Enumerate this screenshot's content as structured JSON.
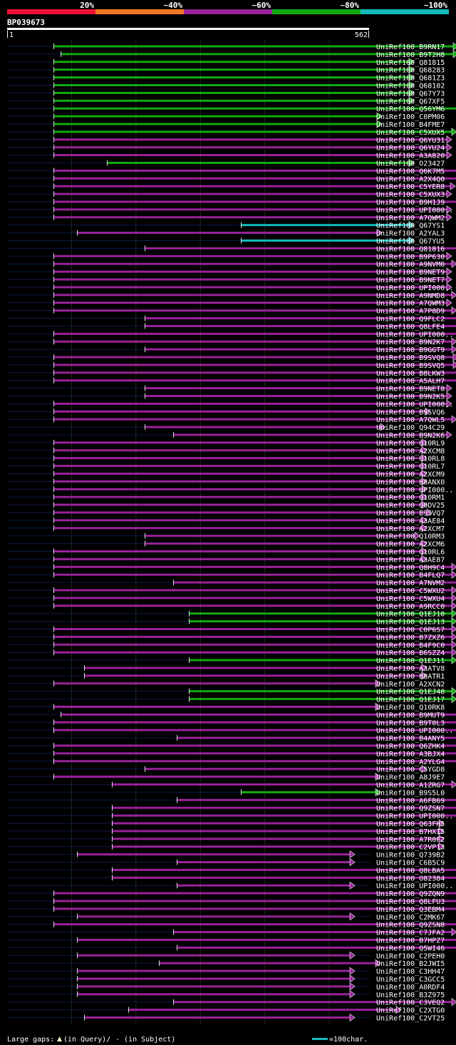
{
  "chart_data": {
    "type": "alignment-overview",
    "title": "BP039673",
    "query_length_start_label": "1",
    "query_length_end_label": "562",
    "query_length": 562,
    "identity_scale": [
      {
        "label": "20%",
        "color": "#ee1133"
      },
      {
        "label": "~40%",
        "color": "#ee7722"
      },
      {
        "label": "~60%",
        "color": "#992299"
      },
      {
        "label": "~80%",
        "color": "#11aa11"
      },
      {
        "label": "~100%",
        "color": "#11bbbb"
      }
    ],
    "legend": {
      "large_gaps_label": "Large gaps:",
      "in_query_label": "(in Query)/",
      "in_subject_label": "- (in Subject)",
      "scale_label": "=100char.",
      "scale_chars": 100
    },
    "hits": [
      {
        "label": "UniRef100_B9RN17",
        "start": 75,
        "end": 642,
        "identity": "~80%"
      },
      {
        "label": "UniRef100_B9T2H8",
        "start": 85,
        "end": 642,
        "identity": "~80%"
      },
      {
        "label": "UniRef100_Q81815",
        "start": 75,
        "end": 580,
        "identity": "~80%"
      },
      {
        "label": "UniRef100_Q68283",
        "start": 75,
        "end": 580,
        "identity": "~80%"
      },
      {
        "label": "UniRef100_Q681Z3",
        "start": 75,
        "end": 580,
        "identity": "~80%"
      },
      {
        "label": "UniRef100_Q68102",
        "start": 75,
        "end": 580,
        "identity": "~80%"
      },
      {
        "label": "UniRef100_Q67Y73",
        "start": 75,
        "end": 580,
        "identity": "~80%"
      },
      {
        "label": "UniRef100_Q67XF5",
        "start": 75,
        "end": 580,
        "identity": "~80%"
      },
      {
        "label": "UniRef100_Q56YM6",
        "start": 75,
        "end": 655,
        "identity": "~80%"
      },
      {
        "label": "UniRef100_C0PM06",
        "start": 75,
        "end": 535,
        "identity": "~80%"
      },
      {
        "label": "UniRef100_B4FME7",
        "start": 75,
        "end": 535,
        "identity": "~80%"
      },
      {
        "label": "UniRef100_C5XUX5",
        "start": 75,
        "end": 640,
        "identity": "~80%"
      },
      {
        "label": "UniRef100_Q6YU31",
        "start": 75,
        "end": 633,
        "identity": "~60%"
      },
      {
        "label": "UniRef100_Q6YU24",
        "start": 75,
        "end": 633,
        "identity": "~60%"
      },
      {
        "label": "UniRef100_A3A820",
        "start": 75,
        "end": 633,
        "identity": "~60%"
      },
      {
        "label": "UniRef100_O23427",
        "start": 150,
        "end": 580,
        "identity": "~80%"
      },
      {
        "label": "UniRef100_Q6K7M5",
        "start": 75,
        "end": 655,
        "identity": "~60%"
      },
      {
        "label": "UniRef100_A2X4Q0",
        "start": 75,
        "end": 655,
        "identity": "~60%"
      },
      {
        "label": "UniRef100_C5YER8",
        "start": 75,
        "end": 638,
        "identity": "~60%"
      },
      {
        "label": "UniRef100_C5XUX3",
        "start": 75,
        "end": 633,
        "identity": "~60%"
      },
      {
        "label": "UniRef100_B9H1J9",
        "start": 75,
        "end": 652,
        "identity": "~60%"
      },
      {
        "label": "UniRef100_UPI000..",
        "start": 75,
        "end": 633,
        "identity": "~60%"
      },
      {
        "label": "UniRef100_A7QWM2",
        "start": 75,
        "end": 633,
        "identity": "~60%"
      },
      {
        "label": "UniRef100_Q67YS1",
        "start": 338,
        "end": 580,
        "identity": "~100%"
      },
      {
        "label": "UniRef100_A2YAL3",
        "start": 108,
        "end": 535,
        "identity": "~60%"
      },
      {
        "label": "UniRef100_Q67YU5",
        "start": 338,
        "end": 580,
        "identity": "~100%"
      },
      {
        "label": "UniRef100_Q81816",
        "start": 203,
        "end": 655,
        "identity": "~60%"
      },
      {
        "label": "UniRef100_B9P630",
        "start": 75,
        "end": 633,
        "identity": "~60%"
      },
      {
        "label": "UniRef100_A9NVM0",
        "start": 75,
        "end": 640,
        "identity": "~60%"
      },
      {
        "label": "UniRef100_B9NET9",
        "start": 75,
        "end": 633,
        "identity": "~60%"
      },
      {
        "label": "UniRef100_B9NET7",
        "start": 75,
        "end": 633,
        "identity": "~60%"
      },
      {
        "label": "UniRef100_UPI000..",
        "start": 75,
        "end": 633,
        "identity": "~60%"
      },
      {
        "label": "UniRef100_A9NMD8",
        "start": 75,
        "end": 640,
        "identity": "~60%"
      },
      {
        "label": "UniRef100_A7QWM3",
        "start": 75,
        "end": 633,
        "identity": "~60%"
      },
      {
        "label": "UniRef100_A7P8D9",
        "start": 75,
        "end": 640,
        "identity": "~60%"
      },
      {
        "label": "UniRef100_Q9FLC2",
        "start": 203,
        "end": 655,
        "identity": "~60%"
      },
      {
        "label": "UniRef100_Q8LFE4",
        "start": 203,
        "end": 655,
        "identity": "~60%"
      },
      {
        "label": "UniRef100_UPI000..",
        "start": 75,
        "end": 655,
        "identity": "~60%"
      },
      {
        "label": "UniRef100_B9N2K7",
        "start": 75,
        "end": 640,
        "identity": "~60%"
      },
      {
        "label": "UniRef100_B9GGT9",
        "start": 203,
        "end": 640,
        "identity": "~60%"
      },
      {
        "label": "UniRef100_B9SVQ8",
        "start": 75,
        "end": 642,
        "identity": "~60%"
      },
      {
        "label": "UniRef100_B9SVQ5",
        "start": 75,
        "end": 642,
        "identity": "~60%"
      },
      {
        "label": "UniRef100_B8LKW3",
        "start": 75,
        "end": 652,
        "identity": "~60%"
      },
      {
        "label": "UniRef100_A5ALH7",
        "start": 75,
        "end": 652,
        "identity": "~60%"
      },
      {
        "label": "UniRef100_B9NET8",
        "start": 203,
        "end": 633,
        "identity": "~60%"
      },
      {
        "label": "UniRef100_B9N2K5",
        "start": 203,
        "end": 633,
        "identity": "~60%"
      },
      {
        "label": "UniRef100_UPI000..",
        "start": 75,
        "end": 633,
        "identity": "~60%"
      },
      {
        "label": "UniRef100_B9SVQ6",
        "start": 75,
        "end": 603,
        "identity": "~60%"
      },
      {
        "label": "UniRef100_A7QWL5",
        "start": 75,
        "end": 640,
        "identity": "~60%"
      },
      {
        "label": "UniRef100_Q94C29",
        "start": 203,
        "end": 540,
        "identity": "~60%"
      },
      {
        "label": "UniRef100_B9N2K6",
        "start": 243,
        "end": 633,
        "identity": "~60%"
      },
      {
        "label": "UniRef100_Q10RL9",
        "start": 75,
        "end": 598,
        "identity": "~60%"
      },
      {
        "label": "UniRef100_A2XCM8",
        "start": 75,
        "end": 598,
        "identity": "~60%"
      },
      {
        "label": "UniRef100_Q10RL8",
        "start": 75,
        "end": 598,
        "identity": "~60%"
      },
      {
        "label": "UniRef100_Q10RL7",
        "start": 75,
        "end": 598,
        "identity": "~60%"
      },
      {
        "label": "UniRef100_A2XCM9",
        "start": 75,
        "end": 598,
        "identity": "~60%"
      },
      {
        "label": "UniRef100_B8ANX0",
        "start": 75,
        "end": 598,
        "identity": "~60%"
      },
      {
        "label": "UniRef100_UPI000..",
        "start": 75,
        "end": 598,
        "identity": "~60%"
      },
      {
        "label": "UniRef100_Q10RM1",
        "start": 75,
        "end": 598,
        "identity": "~60%"
      },
      {
        "label": "UniRef100_Q0DV25",
        "start": 75,
        "end": 598,
        "identity": "~60%"
      },
      {
        "label": "UniRef100_B9SVQ7",
        "start": 75,
        "end": 605,
        "identity": "~60%"
      },
      {
        "label": "UniRef100_A3AE84",
        "start": 75,
        "end": 598,
        "identity": "~60%"
      },
      {
        "label": "UniRef100_A2XCM7",
        "start": 75,
        "end": 598,
        "identity": "~60%"
      },
      {
        "label": "UniRef100_Q10RM3",
        "start": 203,
        "end": 588,
        "identity": "~60%"
      },
      {
        "label": "UniRef100_A2XCM6",
        "start": 203,
        "end": 598,
        "identity": "~60%"
      },
      {
        "label": "UniRef100_Q10RL6",
        "start": 75,
        "end": 598,
        "identity": "~60%"
      },
      {
        "label": "UniRef100_A3AE87",
        "start": 75,
        "end": 598,
        "identity": "~60%"
      },
      {
        "label": "UniRef100_Q8H9C4",
        "start": 75,
        "end": 640,
        "identity": "~60%"
      },
      {
        "label": "UniRef100_B4FLQ7",
        "start": 75,
        "end": 640,
        "identity": "~60%"
      },
      {
        "label": "UniRef100_A7NVM2",
        "start": 243,
        "end": 655,
        "identity": "~60%"
      },
      {
        "label": "UniRef100_C5WXU2",
        "start": 75,
        "end": 640,
        "identity": "~60%"
      },
      {
        "label": "UniRef100_C5WXU4",
        "start": 75,
        "end": 640,
        "identity": "~60%"
      },
      {
        "label": "UniRef100_A9RCC0",
        "start": 75,
        "end": 640,
        "identity": "~60%"
      },
      {
        "label": "UniRef100_Q1EJ10",
        "start": 265,
        "end": 640,
        "identity": "~80%"
      },
      {
        "label": "UniRef100_Q1EJ13",
        "start": 265,
        "end": 640,
        "identity": "~80%"
      },
      {
        "label": "UniRef100_C0P6S7",
        "start": 75,
        "end": 640,
        "identity": "~60%"
      },
      {
        "label": "UniRef100_B7ZXZ6",
        "start": 75,
        "end": 640,
        "identity": "~60%"
      },
      {
        "label": "UniRef100_B4F9C0",
        "start": 75,
        "end": 640,
        "identity": "~60%"
      },
      {
        "label": "UniRef100_B6SZZ4",
        "start": 75,
        "end": 640,
        "identity": "~60%"
      },
      {
        "label": "UniRef100_Q1EJ11",
        "start": 265,
        "end": 640,
        "identity": "~80%"
      },
      {
        "label": "UniRef100_A3ATV8",
        "start": 118,
        "end": 598,
        "identity": "~60%"
      },
      {
        "label": "UniRef100_B8ATR1",
        "start": 118,
        "end": 598,
        "identity": "~60%"
      },
      {
        "label": "UniRef100_A2XCN2",
        "start": 75,
        "end": 533,
        "identity": "~60%"
      },
      {
        "label": "UniRef100_Q1EJ48",
        "start": 265,
        "end": 640,
        "identity": "~80%"
      },
      {
        "label": "UniRef100_Q1EJ17",
        "start": 265,
        "end": 640,
        "identity": "~80%"
      },
      {
        "label": "UniRef100_Q10RK8",
        "start": 75,
        "end": 533,
        "identity": "~60%"
      },
      {
        "label": "UniRef100_B9MUT9",
        "start": 85,
        "end": 647,
        "identity": "~60%"
      },
      {
        "label": "UniRef100_B9T0L3",
        "start": 75,
        "end": 647,
        "identity": "~60%"
      },
      {
        "label": "UniRef100_UPI000..",
        "start": 75,
        "end": 647,
        "identity": "~60%"
      },
      {
        "label": "UniRef100_B4ANY5",
        "start": 248,
        "end": 647,
        "identity": "~60%"
      },
      {
        "label": "UniRef100_Q6ZHK4",
        "start": 75,
        "end": 647,
        "identity": "~60%"
      },
      {
        "label": "UniRef100_A3BJX4",
        "start": 75,
        "end": 647,
        "identity": "~60%"
      },
      {
        "label": "UniRef100_A2YLG4",
        "start": 75,
        "end": 647,
        "identity": "~60%"
      },
      {
        "label": "UniRef100_C5YGD8",
        "start": 203,
        "end": 598,
        "identity": "~60%"
      },
      {
        "label": "UniRef100_A8J9E7",
        "start": 75,
        "end": 533,
        "identity": "~60%"
      },
      {
        "label": "UniRef100_A1ZRG7",
        "start": 157,
        "end": 640,
        "identity": "~60%"
      },
      {
        "label": "UniRef100_B9S5L0",
        "start": 338,
        "end": 533,
        "identity": "~80%"
      },
      {
        "label": "UniRef100_A6FB69",
        "start": 248,
        "end": 655,
        "identity": "~60%"
      },
      {
        "label": "UniRef100_Q9ZSN7",
        "start": 157,
        "end": 647,
        "identity": "~60%"
      },
      {
        "label": "UniRef100_UPI000..",
        "start": 157,
        "end": 647,
        "identity": "~60%"
      },
      {
        "label": "UniRef100_Q63FH5",
        "start": 157,
        "end": 622,
        "identity": "~60%"
      },
      {
        "label": "UniRef100_B7HXI5",
        "start": 157,
        "end": 622,
        "identity": "~60%"
      },
      {
        "label": "UniRef100_A7R0F2",
        "start": 157,
        "end": 622,
        "identity": "~60%"
      },
      {
        "label": "UniRef100_C2VP13",
        "start": 157,
        "end": 622,
        "identity": "~60%"
      },
      {
        "label": "UniRef100_Q739B2",
        "start": 108,
        "end": 497,
        "identity": "~60%"
      },
      {
        "label": "UniRef100_C6B5C9",
        "start": 248,
        "end": 497,
        "identity": "~60%"
      },
      {
        "label": "UniRef100_Q8LBA5",
        "start": 157,
        "end": 647,
        "identity": "~60%"
      },
      {
        "label": "UniRef100_O82384",
        "start": 157,
        "end": 647,
        "identity": "~60%"
      },
      {
        "label": "UniRef100_UPI000..",
        "start": 248,
        "end": 497,
        "identity": "~60%"
      },
      {
        "label": "UniRef100_Q9ZQN9",
        "start": 75,
        "end": 647,
        "identity": "~60%"
      },
      {
        "label": "UniRef100_Q8LFU3",
        "start": 75,
        "end": 647,
        "identity": "~60%"
      },
      {
        "label": "UniRef100_Q3EBM4",
        "start": 75,
        "end": 647,
        "identity": "~60%"
      },
      {
        "label": "UniRef100_C2MK67",
        "start": 108,
        "end": 497,
        "identity": "~60%"
      },
      {
        "label": "UniRef100_Q9ZSN8",
        "start": 75,
        "end": 647,
        "identity": "~60%"
      },
      {
        "label": "UniRef100_C7JFA2",
        "start": 243,
        "end": 640,
        "identity": "~60%"
      },
      {
        "label": "UniRef100_B7HPZ7",
        "start": 108,
        "end": 647,
        "identity": "~60%"
      },
      {
        "label": "UniRef100_Q5WI46",
        "start": 248,
        "end": 655,
        "identity": "~60%"
      },
      {
        "label": "UniRef100_C2PEH0",
        "start": 108,
        "end": 497,
        "identity": "~60%"
      },
      {
        "label": "UniRef100_B2JWI5",
        "start": 223,
        "end": 533,
        "identity": "~60%"
      },
      {
        "label": "UniRef100_C3HH47",
        "start": 108,
        "end": 497,
        "identity": "~60%"
      },
      {
        "label": "UniRef100_C3GCC5",
        "start": 108,
        "end": 497,
        "identity": "~60%"
      },
      {
        "label": "UniRef100_A0RDF4",
        "start": 108,
        "end": 497,
        "identity": "~60%"
      },
      {
        "label": "UniRef100_B3Z975",
        "start": 108,
        "end": 497,
        "identity": "~60%"
      },
      {
        "label": "UniRef100_C3VEQ2",
        "start": 243,
        "end": 640,
        "identity": "~60%"
      },
      {
        "label": "UniRef100_C2XTG0",
        "start": 180,
        "end": 562,
        "identity": "~60%"
      },
      {
        "label": "UniRef100_C2VT25",
        "start": 118,
        "end": 497,
        "identity": "~60%"
      }
    ]
  }
}
